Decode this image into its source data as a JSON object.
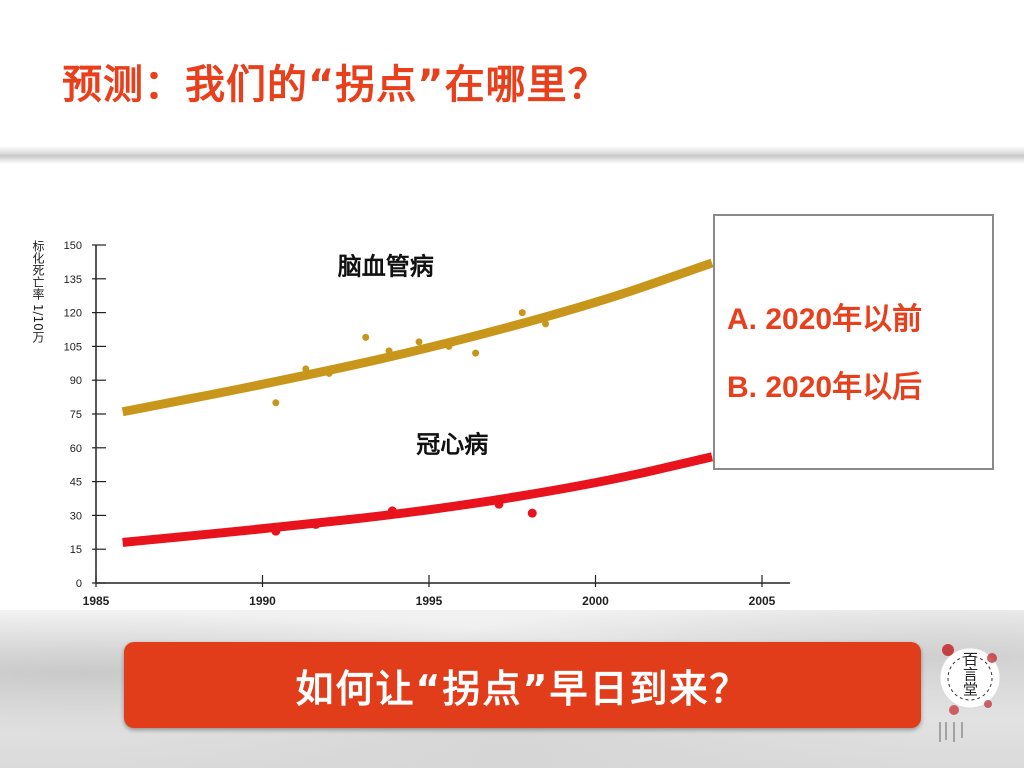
{
  "slide": {
    "title": "预测：我们的“拐点”在哪里？",
    "banner": "如何让“拐点”早日到来？",
    "colors": {
      "title": "#e8401c",
      "banner_bg": "#e23d1b",
      "banner_text": "#ffffff"
    }
  },
  "answers": {
    "a": "A. 2020年以前",
    "b": "B. 2020年以后"
  },
  "logo": {
    "text": "百言堂",
    "icon": "seal-logo-icon"
  },
  "chart_data": {
    "type": "scatter",
    "xlabel": "",
    "ylabel": "标化死亡率 1/10万",
    "xlim": [
      1985,
      2005
    ],
    "ylim": [
      0,
      150
    ],
    "x_ticks": [
      1985,
      1990,
      1995,
      2000,
      2005
    ],
    "y_ticks": [
      0,
      15,
      30,
      45,
      60,
      75,
      90,
      105,
      120,
      135,
      150
    ],
    "grid": false,
    "series": [
      {
        "name": "脑血管病",
        "color": "#c9961c",
        "points": [
          {
            "x": 1990.4,
            "y": 80
          },
          {
            "x": 1991.3,
            "y": 95
          },
          {
            "x": 1992.0,
            "y": 93
          },
          {
            "x": 1993.1,
            "y": 109
          },
          {
            "x": 1993.8,
            "y": 103
          },
          {
            "x": 1994.7,
            "y": 107
          },
          {
            "x": 1995.6,
            "y": 105
          },
          {
            "x": 1996.4,
            "y": 102
          },
          {
            "x": 1997.8,
            "y": 120
          },
          {
            "x": 1998.5,
            "y": 115
          }
        ],
        "trend": [
          {
            "x": 1985.8,
            "y": 76
          },
          {
            "x": 1990,
            "y": 88
          },
          {
            "x": 1995,
            "y": 104
          },
          {
            "x": 2000,
            "y": 124
          },
          {
            "x": 2003.5,
            "y": 142
          }
        ]
      },
      {
        "name": "冠心病",
        "color": "#e8131d",
        "points": [
          {
            "x": 1990.4,
            "y": 23
          },
          {
            "x": 1991.6,
            "y": 26
          },
          {
            "x": 1993.9,
            "y": 32
          },
          {
            "x": 1997.1,
            "y": 35
          },
          {
            "x": 1998.1,
            "y": 31
          }
        ],
        "trend": [
          {
            "x": 1985.8,
            "y": 18
          },
          {
            "x": 1990,
            "y": 24
          },
          {
            "x": 1995,
            "y": 32
          },
          {
            "x": 2000,
            "y": 44
          },
          {
            "x": 2003.5,
            "y": 56
          }
        ]
      }
    ]
  }
}
